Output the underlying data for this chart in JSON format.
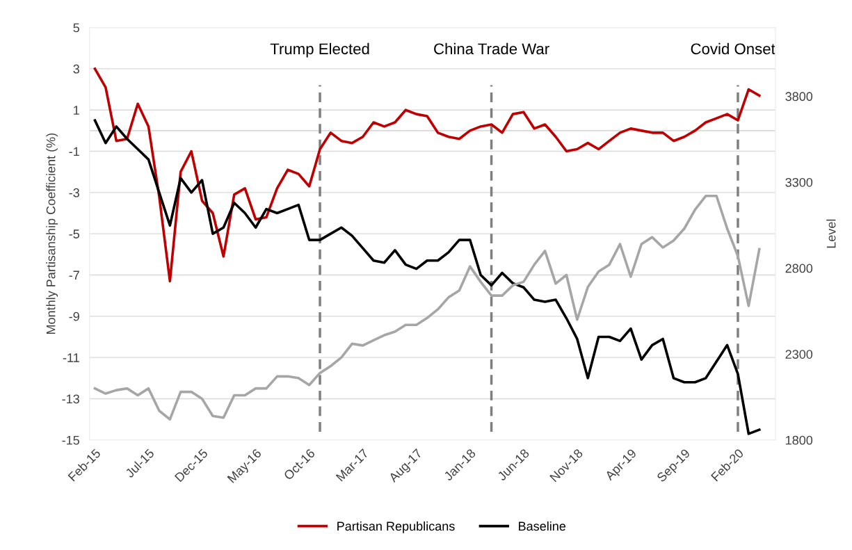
{
  "chart_data": {
    "type": "line",
    "x": [
      "2015-02",
      "2015-03",
      "2015-04",
      "2015-05",
      "2015-06",
      "2015-07",
      "2015-08",
      "2015-09",
      "2015-10",
      "2015-11",
      "2015-12",
      "2016-01",
      "2016-02",
      "2016-03",
      "2016-04",
      "2016-05",
      "2016-06",
      "2016-07",
      "2016-08",
      "2016-09",
      "2016-10",
      "2016-11",
      "2016-12",
      "2017-01",
      "2017-02",
      "2017-03",
      "2017-04",
      "2017-05",
      "2017-06",
      "2017-07",
      "2017-08",
      "2017-09",
      "2017-10",
      "2017-11",
      "2017-12",
      "2018-01",
      "2018-02",
      "2018-03",
      "2018-04",
      "2018-05",
      "2018-06",
      "2018-07",
      "2018-08",
      "2018-09",
      "2018-10",
      "2018-11",
      "2018-12",
      "2019-01",
      "2019-02",
      "2019-03",
      "2019-04",
      "2019-05",
      "2019-06",
      "2019-07",
      "2019-08",
      "2019-09",
      "2019-10",
      "2019-11",
      "2019-12",
      "2020-01",
      "2020-02",
      "2020-03",
      "2020-04"
    ],
    "series": [
      {
        "name": "Partisan Republicans",
        "color": "#c00000",
        "values": [
          3.0,
          2.1,
          -0.5,
          -0.4,
          1.3,
          0.2,
          -3.2,
          -7.3,
          -2.0,
          -1.0,
          -3.4,
          -4.0,
          -6.1,
          -3.1,
          -2.8,
          -4.3,
          -4.2,
          -2.8,
          -1.9,
          -2.1,
          -2.7,
          -0.9,
          -0.1,
          -0.5,
          -0.6,
          -0.3,
          0.4,
          0.2,
          0.4,
          1.0,
          0.8,
          0.7,
          -0.1,
          -0.3,
          -0.4,
          0.0,
          0.2,
          0.3,
          -0.1,
          0.8,
          0.9,
          0.1,
          0.3,
          -0.3,
          -1.0,
          -0.9,
          -0.6,
          -0.9,
          -0.5,
          -0.1,
          0.1,
          0.0,
          -0.1,
          -0.1,
          -0.5,
          -0.3,
          0.0,
          0.4,
          0.6,
          0.8,
          0.5,
          2.0,
          1.7
        ]
      },
      {
        "name": "Baseline",
        "color": "#000000",
        "values": [
          0.5,
          -0.6,
          0.2,
          -0.4,
          -0.9,
          -1.4,
          -3.0,
          -4.6,
          -2.3,
          -3.0,
          -2.4,
          -5.0,
          -4.7,
          -3.5,
          -4.0,
          -4.7,
          -3.8,
          -4.0,
          -3.8,
          -3.6,
          -5.3,
          -5.3,
          -5.0,
          -4.7,
          -5.1,
          -5.7,
          -6.3,
          -6.4,
          -5.8,
          -6.5,
          -6.7,
          -6.3,
          -6.3,
          -5.9,
          -5.3,
          -5.3,
          -7.0,
          -7.5,
          -6.9,
          -7.4,
          -7.6,
          -8.2,
          -8.3,
          -8.2,
          -9.1,
          -10.1,
          -12.0,
          -10.0,
          -10.0,
          -10.2,
          -9.6,
          -11.1,
          -10.4,
          -10.1,
          -12.0,
          -12.2,
          -12.2,
          -12.0,
          -11.2,
          -10.4,
          -11.8,
          -14.7,
          -14.5
        ]
      },
      {
        "color": "#a6a6a6",
        "axis": "y2",
        "values": [
          2100,
          2070,
          2090,
          2100,
          2060,
          2100,
          1970,
          1920,
          2080,
          2080,
          2040,
          1940,
          1930,
          2060,
          2060,
          2100,
          2100,
          2170,
          2170,
          2160,
          2120,
          2190,
          2230,
          2280,
          2360,
          2350,
          2380,
          2410,
          2430,
          2470,
          2470,
          2510,
          2560,
          2630,
          2670,
          2810,
          2720,
          2640,
          2640,
          2700,
          2720,
          2820,
          2900,
          2710,
          2760,
          2500,
          2690,
          2780,
          2820,
          2940,
          2750,
          2940,
          2980,
          2920,
          2960,
          3030,
          3140,
          3220,
          3220,
          3030,
          2870,
          2580,
          2910
        ]
      }
    ],
    "ylabel": "Monthly Partisanship Coefficient (%)",
    "y2label": "Level",
    "ylim": [
      -15,
      5
    ],
    "yticks": [
      -15,
      -13,
      -11,
      -9,
      -7,
      -5,
      -3,
      -1,
      1,
      3,
      5
    ],
    "y2lim": [
      1800,
      4200
    ],
    "y2ticks": [
      1800,
      2300,
      2800,
      3300,
      3800
    ],
    "xlim": [
      "2015-01-16",
      "2020-05-16"
    ],
    "xticks": [
      {
        "value": "2015-02",
        "label": "Feb-15"
      },
      {
        "value": "2015-07",
        "label": "Jul-15"
      },
      {
        "value": "2015-12",
        "label": "Dec-15"
      },
      {
        "value": "2016-05",
        "label": "May-16"
      },
      {
        "value": "2016-10",
        "label": "Oct-16"
      },
      {
        "value": "2017-03",
        "label": "Mar-17"
      },
      {
        "value": "2017-08",
        "label": "Aug-17"
      },
      {
        "value": "2018-01",
        "label": "Jan-18"
      },
      {
        "value": "2018-06",
        "label": "Jun-18"
      },
      {
        "value": "2018-11",
        "label": "Nov-18"
      },
      {
        "value": "2019-04",
        "label": "Apr-19"
      },
      {
        "value": "2019-09",
        "label": "Sep-19"
      },
      {
        "value": "2020-02",
        "label": "Feb-20"
      }
    ],
    "ref_lines": [
      {
        "axis": "y",
        "value": 0,
        "color": "#d9d9d9",
        "line_style": "solid"
      },
      {
        "axis": "x",
        "value": "2016-11",
        "label": "Trump Elected",
        "color": "#7f7f7f",
        "line_style": "dashed"
      },
      {
        "axis": "x",
        "value": "2018-03",
        "label": "China Trade War",
        "color": "#7f7f7f",
        "line_style": "dashed"
      },
      {
        "axis": "x",
        "value": "2020-02",
        "label": "Covid Onset",
        "color": "#7f7f7f",
        "line_style": "dashed"
      }
    ],
    "grid": "y",
    "legend": "bottom",
    "marker": "none",
    "line_style": "solid"
  }
}
